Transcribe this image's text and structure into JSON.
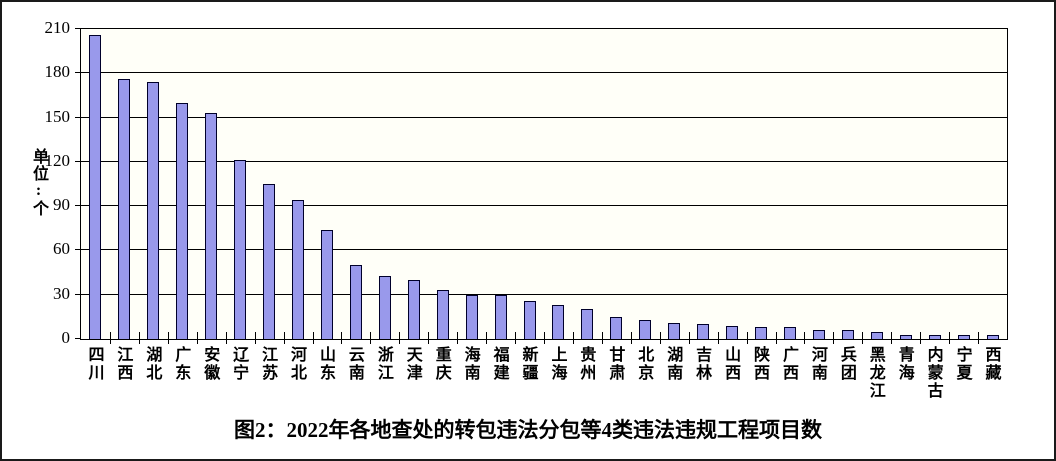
{
  "chart_data": {
    "type": "bar",
    "title": "图2：2022年各地查处的转包违法分包等4类违法违规工程项目数",
    "ylabel": "单位:个",
    "xlabel": "",
    "categories": [
      "四川",
      "江西",
      "湖北",
      "广东",
      "安徽",
      "辽宁",
      "江苏",
      "河北",
      "山东",
      "云南",
      "浙江",
      "天津",
      "重庆",
      "海南",
      "福建",
      "新疆",
      "上海",
      "贵州",
      "甘肃",
      "北京",
      "湖南",
      "吉林",
      "山西",
      "陕西",
      "广西",
      "河南",
      "兵团",
      "黑龙江",
      "青海",
      "内蒙古",
      "宁夏",
      "西藏"
    ],
    "values": [
      206,
      176,
      174,
      160,
      153,
      121,
      105,
      94,
      74,
      50,
      43,
      40,
      33,
      30,
      30,
      26,
      23,
      20,
      15,
      13,
      11,
      10,
      9,
      8,
      8,
      6,
      6,
      5,
      3,
      3,
      3,
      3
    ],
    "ylim": [
      0,
      210
    ],
    "ytick_step": 30,
    "yticks": [
      0,
      30,
      60,
      90,
      120,
      150,
      180,
      210
    ],
    "grid": "horizontal",
    "legend": "none",
    "bar_fill": "#9999EB",
    "bar_border": "#00002a",
    "plot_bg": "#fffff8",
    "axis_color": "#000000"
  }
}
